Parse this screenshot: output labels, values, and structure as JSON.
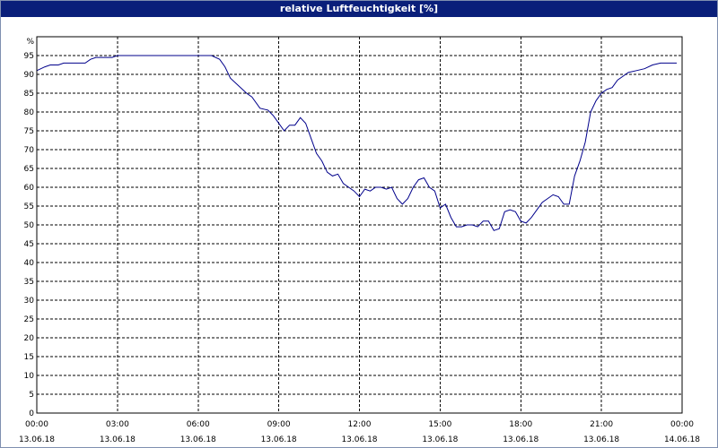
{
  "chart_data": {
    "type": "line",
    "title": "relative Luftfeuchtigkeit [%]",
    "ylabel": "%",
    "xlabel": "",
    "ylim": [
      0,
      100
    ],
    "y_ticks": [
      0,
      5,
      10,
      15,
      20,
      25,
      30,
      35,
      40,
      45,
      50,
      55,
      60,
      65,
      70,
      75,
      80,
      85,
      90,
      95
    ],
    "xlim_hours": [
      0,
      24
    ],
    "x_ticks": [
      {
        "time": "00:00",
        "date": "13.06.18"
      },
      {
        "time": "03:00",
        "date": "13.06.18"
      },
      {
        "time": "06:00",
        "date": "13.06.18"
      },
      {
        "time": "09:00",
        "date": "13.06.18"
      },
      {
        "time": "12:00",
        "date": "13.06.18"
      },
      {
        "time": "15:00",
        "date": "13.06.18"
      },
      {
        "time": "18:00",
        "date": "13.06.18"
      },
      {
        "time": "21:00",
        "date": "13.06.18"
      },
      {
        "time": "00:00",
        "date": "14.06.18"
      }
    ],
    "grid": true,
    "line_color": "#00008b",
    "series": [
      {
        "name": "",
        "x": [
          0.0,
          0.3,
          0.5,
          0.8,
          1.0,
          1.5,
          1.8,
          2.0,
          2.2,
          2.5,
          2.8,
          3.0,
          3.5,
          4.0,
          5.0,
          6.0,
          6.5,
          6.8,
          7.0,
          7.2,
          7.5,
          7.8,
          8.0,
          8.3,
          8.6,
          8.8,
          9.0,
          9.2,
          9.4,
          9.6,
          9.8,
          10.0,
          10.2,
          10.4,
          10.6,
          10.8,
          11.0,
          11.2,
          11.4,
          11.6,
          11.8,
          12.0,
          12.2,
          12.4,
          12.6,
          12.8,
          13.0,
          13.2,
          13.4,
          13.6,
          13.8,
          14.0,
          14.2,
          14.4,
          14.6,
          14.8,
          15.0,
          15.2,
          15.4,
          15.6,
          15.8,
          16.0,
          16.2,
          16.4,
          16.6,
          16.8,
          17.0,
          17.2,
          17.4,
          17.6,
          17.8,
          18.0,
          18.2,
          18.4,
          18.6,
          18.8,
          19.0,
          19.2,
          19.4,
          19.6,
          19.8,
          20.0,
          20.2,
          20.4,
          20.6,
          20.8,
          21.0,
          21.2,
          21.4,
          21.6,
          21.8,
          22.0,
          22.3,
          22.6,
          22.9,
          23.2,
          23.5,
          23.8
        ],
        "y": [
          91,
          92,
          92.5,
          92.5,
          93,
          93,
          93,
          94,
          94.5,
          94.5,
          94.5,
          95,
          95,
          95,
          95,
          95,
          95,
          94,
          92,
          89,
          87,
          85,
          84,
          81,
          80.5,
          79,
          77,
          75,
          76.5,
          76.5,
          78.5,
          77,
          73,
          69,
          67,
          64,
          63,
          63.5,
          61,
          60,
          59,
          57.5,
          59.5,
          59,
          60,
          60,
          59.5,
          60,
          57,
          55.5,
          57,
          60,
          62,
          62.5,
          60,
          59,
          54.5,
          55.5,
          52,
          49.5,
          49.5,
          50,
          50,
          49.5,
          51,
          51,
          48.5,
          49,
          53.5,
          54,
          53.5,
          51,
          50.5,
          52,
          54,
          56,
          57,
          58,
          57.5,
          55.5,
          55.5,
          63,
          67,
          72,
          80,
          83,
          85,
          86,
          86.5,
          88.5,
          89.5,
          90.5,
          91,
          91.5,
          92.5,
          93,
          93,
          93
        ]
      }
    ]
  }
}
